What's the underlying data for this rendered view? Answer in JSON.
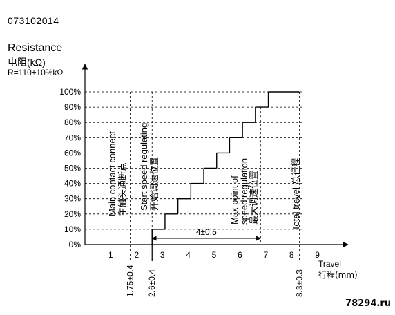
{
  "header": {
    "doc_code": "073102014",
    "resistance_en": "Resistance",
    "resistance_cn": "电阻(kΩ)",
    "resistance_value": "R=110±10%kΩ"
  },
  "watermark": "78294.ru",
  "chart_data": {
    "type": "line",
    "title": "",
    "ylabel": "Resistance 电阻(kΩ)",
    "xlabel_en": "Travel",
    "xlabel_cn": "行程(mm)",
    "y_ticks": [
      "0%",
      "10%",
      "20%",
      "30%",
      "40%",
      "50%",
      "60%",
      "70%",
      "80%",
      "90%",
      "100%"
    ],
    "x_ticks": [
      "1",
      "2",
      "3",
      "4",
      "5",
      "6",
      "7",
      "8",
      "9"
    ],
    "xlim": [
      0,
      10
    ],
    "ylim": [
      0,
      100
    ],
    "grid": "horizontal dashed",
    "series": [
      {
        "x": [
          2.6,
          2.6,
          3.1,
          3.1,
          3.6,
          3.6,
          4.1,
          4.1,
          4.6,
          4.6,
          5.1,
          5.1,
          5.6,
          5.6,
          6.1,
          6.1,
          6.6,
          6.6,
          7.1,
          7.1,
          8.3
        ],
        "y": [
          0,
          10,
          10,
          20,
          20,
          30,
          30,
          40,
          40,
          50,
          50,
          60,
          60,
          70,
          70,
          80,
          80,
          90,
          90,
          100,
          100
        ]
      }
    ],
    "markers": [
      {
        "x": 1.75,
        "label": "1.75±0.4"
      },
      {
        "x": 2.6,
        "label": "2.6±0.4"
      },
      {
        "x": 8.3,
        "label": "8.3±0.3"
      }
    ],
    "annotations": {
      "main_contact": [
        "Main contact connect",
        "主触头通断点"
      ],
      "start_speed": [
        "Start speed regulating",
        "开始调速位置"
      ],
      "max_point": [
        "Max point of",
        "speed regulation",
        "最大调速位置"
      ],
      "total_travel": "Total travel 总行程",
      "dimension": "4±0.5"
    }
  }
}
